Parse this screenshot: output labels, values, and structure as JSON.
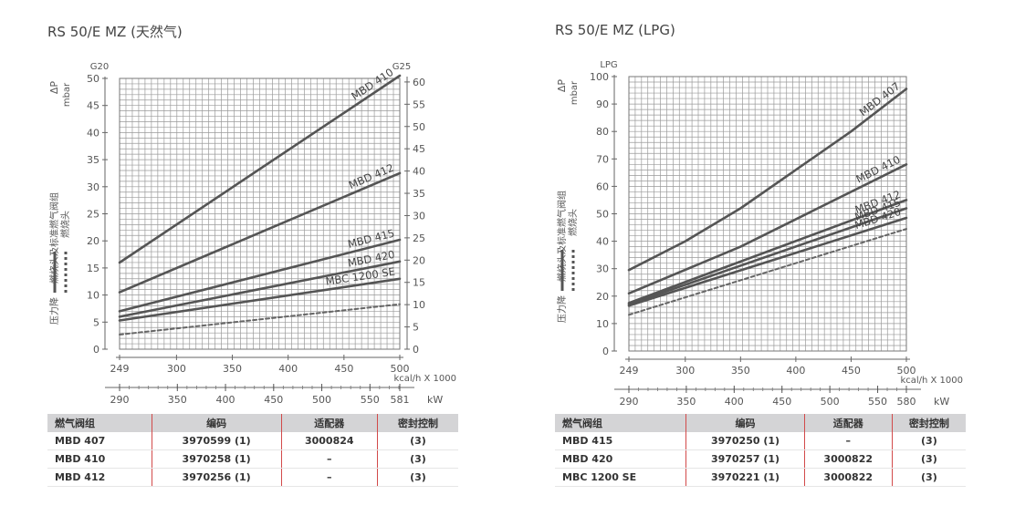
{
  "panels": [
    {
      "title": "RS 50/E MZ (天然气)",
      "chart_data": {
        "type": "line",
        "ylabel": "ΔP",
        "ylabel_unit": "mbar",
        "left_axis_name": "G20",
        "right_axis_name": "G25",
        "ylim": [
          0,
          50
        ],
        "yticks": [
          0,
          5,
          10,
          15,
          20,
          25,
          30,
          35,
          40,
          45,
          50
        ],
        "y2lim": [
          0,
          60
        ],
        "y2ticks": [
          0,
          5,
          10,
          15,
          20,
          25,
          30,
          35,
          40,
          45,
          50,
          55,
          60
        ],
        "xlim": [
          249,
          500
        ],
        "xticks": [
          249,
          300,
          350,
          400,
          450,
          500
        ],
        "xunit": "kcal/h X 1000",
        "kw_ticks": [
          290,
          350,
          400,
          450,
          500,
          550,
          581
        ],
        "kw_unit": "kW",
        "legend_burner": "燃烧头及标准燃气阀组",
        "legend_head": "燃烧头",
        "legend_drop": "压力降",
        "series": [
          {
            "name": "MBD 410",
            "x": [
              249,
              500
            ],
            "y": [
              16,
              50.5
            ],
            "style": "solid"
          },
          {
            "name": "MBD 412",
            "x": [
              249,
              500
            ],
            "y": [
              10.5,
              32.5
            ],
            "style": "solid"
          },
          {
            "name": "MBD 415",
            "x": [
              249,
              500
            ],
            "y": [
              7,
              20.2
            ],
            "style": "solid"
          },
          {
            "name": "MBD 420",
            "x": [
              249,
              500
            ],
            "y": [
              6,
              16.2
            ],
            "style": "solid"
          },
          {
            "name": "MBC 1200 SE",
            "x": [
              249,
              500
            ],
            "y": [
              5.3,
              13
            ],
            "style": "solid"
          },
          {
            "name": "",
            "x": [
              249,
              500
            ],
            "y": [
              2.7,
              8.3
            ],
            "style": "dashed"
          }
        ]
      },
      "table": {
        "headers": [
          "燃气阀组",
          "编码",
          "适配器",
          "密封控制"
        ],
        "rows": [
          [
            "MBD 407",
            "3970599 (1)",
            "3000824",
            "(3)"
          ],
          [
            "MBD 410",
            "3970258 (1)",
            "–",
            "(3)"
          ],
          [
            "MBD 412",
            "3970256 (1)",
            "–",
            "(3)"
          ]
        ]
      }
    },
    {
      "title": "RS 50/E MZ (LPG)",
      "chart_data": {
        "type": "line",
        "ylabel": "ΔP",
        "ylabel_unit": "mbar",
        "left_axis_name": "LPG",
        "ylim": [
          0,
          100
        ],
        "yticks": [
          0,
          10,
          20,
          30,
          40,
          50,
          60,
          70,
          80,
          90,
          100
        ],
        "xlim": [
          249,
          500
        ],
        "xticks": [
          249,
          300,
          350,
          400,
          450,
          500
        ],
        "xunit": "kcal/h X 1000",
        "kw_ticks": [
          290,
          350,
          400,
          450,
          500,
          550,
          580
        ],
        "kw_unit": "kW",
        "legend_burner": "燃烧头及标准燃气阀组",
        "legend_head": "燃烧头",
        "legend_drop": "压力降",
        "series": [
          {
            "name": "MBD 407",
            "x": [
              249,
              300,
              350,
              400,
              450,
              500
            ],
            "y": [
              29.5,
              40,
              52,
              66,
              80,
              95.5
            ],
            "style": "solid"
          },
          {
            "name": "MBD 410",
            "x": [
              249,
              350,
              500
            ],
            "y": [
              21,
              38,
              68
            ],
            "style": "solid"
          },
          {
            "name": "MBD 412",
            "x": [
              249,
              500
            ],
            "y": [
              17.5,
              55
            ],
            "style": "solid"
          },
          {
            "name": "MBD 415",
            "x": [
              249,
              500
            ],
            "y": [
              17,
              52
            ],
            "style": "solid"
          },
          {
            "name": "MBD 420",
            "x": [
              249,
              500
            ],
            "y": [
              16.5,
              48.5
            ],
            "style": "solid"
          },
          {
            "name": "",
            "x": [
              249,
              500
            ],
            "y": [
              13.2,
              44.5
            ],
            "style": "dashed"
          }
        ]
      },
      "table": {
        "headers": [
          "燃气阀组",
          "编码",
          "适配器",
          "密封控制"
        ],
        "rows": [
          [
            "MBD 415",
            "3970250 (1)",
            "–",
            "(3)"
          ],
          [
            "MBD 420",
            "3970257 (1)",
            "3000822",
            "(3)"
          ],
          [
            "MBC 1200 SE",
            "3970221 (1)",
            "3000822",
            "(3)"
          ]
        ]
      }
    }
  ]
}
